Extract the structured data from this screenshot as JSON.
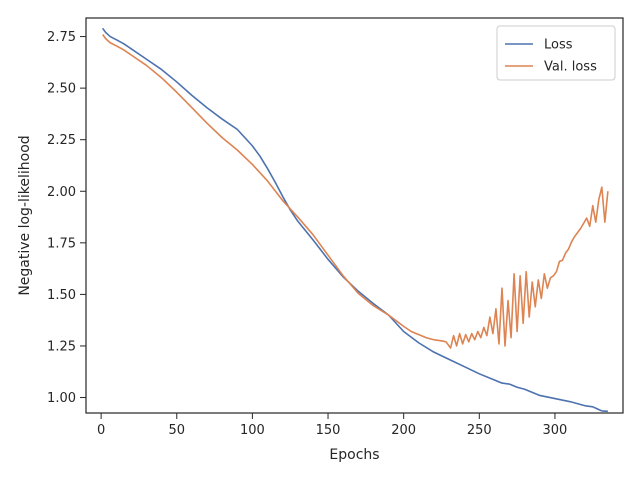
{
  "chart_data": {
    "type": "line",
    "title": "",
    "xlabel": "Epochs",
    "ylabel": "Negative log-likelihood",
    "xlim": [
      -10,
      345
    ],
    "ylim": [
      0.925,
      2.84
    ],
    "x_ticks": [
      0,
      50,
      100,
      150,
      200,
      250,
      300
    ],
    "y_ticks": [
      1.0,
      1.25,
      1.5,
      1.75,
      2.0,
      2.25,
      2.5,
      2.75
    ],
    "x_tick_labels": [
      "0",
      "50",
      "100",
      "150",
      "200",
      "250",
      "300"
    ],
    "y_tick_labels": [
      "1.00",
      "1.25",
      "1.50",
      "1.75",
      "2.00",
      "2.25",
      "2.50",
      "2.75"
    ],
    "grid": false,
    "legend_position": "top-right",
    "series": [
      {
        "name": "Loss",
        "color": "#4c72b0",
        "points": [
          [
            1,
            2.79
          ],
          [
            3,
            2.77
          ],
          [
            6,
            2.75
          ],
          [
            10,
            2.735
          ],
          [
            15,
            2.715
          ],
          [
            20,
            2.69
          ],
          [
            30,
            2.64
          ],
          [
            40,
            2.59
          ],
          [
            50,
            2.53
          ],
          [
            60,
            2.465
          ],
          [
            70,
            2.405
          ],
          [
            80,
            2.35
          ],
          [
            90,
            2.3
          ],
          [
            100,
            2.22
          ],
          [
            105,
            2.17
          ],
          [
            110,
            2.11
          ],
          [
            115,
            2.045
          ],
          [
            120,
            1.975
          ],
          [
            125,
            1.91
          ],
          [
            130,
            1.855
          ],
          [
            140,
            1.765
          ],
          [
            150,
            1.67
          ],
          [
            160,
            1.585
          ],
          [
            170,
            1.515
          ],
          [
            180,
            1.455
          ],
          [
            190,
            1.4
          ],
          [
            200,
            1.32
          ],
          [
            210,
            1.265
          ],
          [
            220,
            1.22
          ],
          [
            230,
            1.185
          ],
          [
            240,
            1.15
          ],
          [
            250,
            1.115
          ],
          [
            260,
            1.085
          ],
          [
            265,
            1.07
          ],
          [
            270,
            1.065
          ],
          [
            275,
            1.05
          ],
          [
            280,
            1.04
          ],
          [
            285,
            1.025
          ],
          [
            290,
            1.01
          ],
          [
            300,
            0.995
          ],
          [
            310,
            0.98
          ],
          [
            320,
            0.96
          ],
          [
            325,
            0.955
          ],
          [
            328,
            0.945
          ],
          [
            331,
            0.935
          ],
          [
            335,
            0.933
          ]
        ]
      },
      {
        "name": "Val. loss",
        "color": "#dd8452",
        "points": [
          [
            1,
            2.76
          ],
          [
            3,
            2.74
          ],
          [
            6,
            2.72
          ],
          [
            10,
            2.705
          ],
          [
            15,
            2.685
          ],
          [
            20,
            2.66
          ],
          [
            30,
            2.61
          ],
          [
            40,
            2.55
          ],
          [
            50,
            2.48
          ],
          [
            60,
            2.405
          ],
          [
            70,
            2.33
          ],
          [
            80,
            2.26
          ],
          [
            90,
            2.2
          ],
          [
            100,
            2.13
          ],
          [
            110,
            2.05
          ],
          [
            120,
            1.955
          ],
          [
            130,
            1.875
          ],
          [
            140,
            1.79
          ],
          [
            150,
            1.69
          ],
          [
            160,
            1.59
          ],
          [
            170,
            1.505
          ],
          [
            180,
            1.445
          ],
          [
            190,
            1.4
          ],
          [
            200,
            1.345
          ],
          [
            205,
            1.32
          ],
          [
            210,
            1.305
          ],
          [
            215,
            1.29
          ],
          [
            220,
            1.28
          ],
          [
            225,
            1.275
          ],
          [
            228,
            1.27
          ],
          [
            231,
            1.24
          ],
          [
            233,
            1.3
          ],
          [
            235,
            1.25
          ],
          [
            237,
            1.31
          ],
          [
            239,
            1.26
          ],
          [
            241,
            1.305
          ],
          [
            243,
            1.27
          ],
          [
            245,
            1.31
          ],
          [
            247,
            1.28
          ],
          [
            249,
            1.32
          ],
          [
            251,
            1.29
          ],
          [
            253,
            1.34
          ],
          [
            255,
            1.3
          ],
          [
            257,
            1.39
          ],
          [
            259,
            1.31
          ],
          [
            261,
            1.43
          ],
          [
            263,
            1.26
          ],
          [
            265,
            1.53
          ],
          [
            267,
            1.25
          ],
          [
            269,
            1.47
          ],
          [
            271,
            1.29
          ],
          [
            273,
            1.6
          ],
          [
            275,
            1.32
          ],
          [
            277,
            1.59
          ],
          [
            279,
            1.36
          ],
          [
            281,
            1.61
          ],
          [
            283,
            1.39
          ],
          [
            285,
            1.56
          ],
          [
            287,
            1.44
          ],
          [
            289,
            1.57
          ],
          [
            291,
            1.48
          ],
          [
            293,
            1.6
          ],
          [
            295,
            1.53
          ],
          [
            297,
            1.58
          ],
          [
            299,
            1.59
          ],
          [
            301,
            1.61
          ],
          [
            303,
            1.66
          ],
          [
            305,
            1.665
          ],
          [
            307,
            1.7
          ],
          [
            309,
            1.72
          ],
          [
            311,
            1.755
          ],
          [
            313,
            1.78
          ],
          [
            315,
            1.8
          ],
          [
            317,
            1.82
          ],
          [
            319,
            1.845
          ],
          [
            321,
            1.87
          ],
          [
            323,
            1.83
          ],
          [
            325,
            1.93
          ],
          [
            327,
            1.85
          ],
          [
            329,
            1.96
          ],
          [
            331,
            2.02
          ],
          [
            333,
            1.85
          ],
          [
            335,
            2.0
          ]
        ]
      }
    ]
  }
}
